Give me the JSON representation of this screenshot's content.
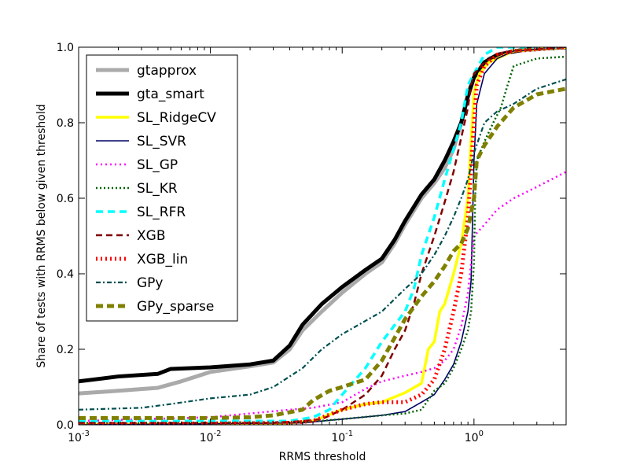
{
  "chart_data": {
    "type": "line",
    "title": "",
    "xlabel": "RRMS threshold",
    "ylabel": "Share of tests with RRMS below given threshold",
    "xscale": "log",
    "xlim": [
      0.001,
      5.0
    ],
    "ylim": [
      0.0,
      1.0
    ],
    "x_ticks": [
      {
        "value": 0.001,
        "base": "10",
        "exp": "-3"
      },
      {
        "value": 0.01,
        "base": "10",
        "exp": "-2"
      },
      {
        "value": 0.1,
        "base": "10",
        "exp": "-1"
      },
      {
        "value": 1.0,
        "base": "10",
        "exp": "0"
      }
    ],
    "y_ticks": [
      {
        "value": 0.0,
        "label": "0.0"
      },
      {
        "value": 0.2,
        "label": "0.2"
      },
      {
        "value": 0.4,
        "label": "0.4"
      },
      {
        "value": 0.6,
        "label": "0.6"
      },
      {
        "value": 0.8,
        "label": "0.8"
      },
      {
        "value": 1.0,
        "label": "1.0"
      }
    ],
    "grid": false,
    "legend_position": "upper-left",
    "series": [
      {
        "name": "gtapprox",
        "color": "#aaaaaa",
        "width": 5,
        "dash": "",
        "points": [
          [
            0.001,
            0.083
          ],
          [
            0.002,
            0.09
          ],
          [
            0.004,
            0.098
          ],
          [
            0.006,
            0.115
          ],
          [
            0.01,
            0.14
          ],
          [
            0.02,
            0.155
          ],
          [
            0.03,
            0.165
          ],
          [
            0.04,
            0.2
          ],
          [
            0.05,
            0.25
          ],
          [
            0.07,
            0.3
          ],
          [
            0.1,
            0.35
          ],
          [
            0.15,
            0.4
          ],
          [
            0.2,
            0.43
          ],
          [
            0.25,
            0.48
          ],
          [
            0.3,
            0.53
          ],
          [
            0.4,
            0.6
          ],
          [
            0.5,
            0.64
          ],
          [
            0.6,
            0.68
          ],
          [
            0.7,
            0.73
          ],
          [
            0.8,
            0.8
          ],
          [
            0.9,
            0.88
          ],
          [
            1.0,
            0.92
          ],
          [
            1.3,
            0.97
          ],
          [
            2.0,
            0.99
          ],
          [
            5.0,
            1.0
          ]
        ]
      },
      {
        "name": "gta_smart",
        "color": "#000000",
        "width": 5,
        "dash": "",
        "points": [
          [
            0.001,
            0.115
          ],
          [
            0.002,
            0.128
          ],
          [
            0.004,
            0.135
          ],
          [
            0.005,
            0.148
          ],
          [
            0.01,
            0.152
          ],
          [
            0.02,
            0.16
          ],
          [
            0.03,
            0.17
          ],
          [
            0.04,
            0.21
          ],
          [
            0.05,
            0.265
          ],
          [
            0.07,
            0.32
          ],
          [
            0.1,
            0.365
          ],
          [
            0.15,
            0.41
          ],
          [
            0.2,
            0.44
          ],
          [
            0.25,
            0.49
          ],
          [
            0.3,
            0.54
          ],
          [
            0.4,
            0.61
          ],
          [
            0.5,
            0.65
          ],
          [
            0.6,
            0.7
          ],
          [
            0.7,
            0.75
          ],
          [
            0.8,
            0.8
          ],
          [
            0.9,
            0.87
          ],
          [
            1.0,
            0.92
          ],
          [
            1.2,
            0.96
          ],
          [
            1.5,
            0.98
          ],
          [
            2.5,
            0.995
          ],
          [
            5.0,
            1.0
          ]
        ]
      },
      {
        "name": "SL_RidgeCV",
        "color": "#ffff00",
        "width": 3.5,
        "dash": "",
        "points": [
          [
            0.001,
            0.0
          ],
          [
            0.04,
            0.005
          ],
          [
            0.06,
            0.01
          ],
          [
            0.1,
            0.04
          ],
          [
            0.15,
            0.055
          ],
          [
            0.2,
            0.06
          ],
          [
            0.3,
            0.085
          ],
          [
            0.4,
            0.11
          ],
          [
            0.45,
            0.2
          ],
          [
            0.5,
            0.22
          ],
          [
            0.55,
            0.3
          ],
          [
            0.6,
            0.32
          ],
          [
            0.7,
            0.4
          ],
          [
            0.8,
            0.48
          ],
          [
            0.9,
            0.6
          ],
          [
            0.95,
            0.75
          ],
          [
            1.0,
            0.88
          ],
          [
            1.1,
            0.93
          ],
          [
            1.3,
            0.96
          ],
          [
            2.0,
            0.99
          ],
          [
            5.0,
            1.0
          ]
        ]
      },
      {
        "name": "SL_SVR",
        "color": "#000066",
        "width": 1.6,
        "dash": "",
        "points": [
          [
            0.001,
            0.0
          ],
          [
            0.05,
            0.005
          ],
          [
            0.1,
            0.015
          ],
          [
            0.2,
            0.025
          ],
          [
            0.3,
            0.035
          ],
          [
            0.4,
            0.06
          ],
          [
            0.5,
            0.08
          ],
          [
            0.6,
            0.12
          ],
          [
            0.7,
            0.16
          ],
          [
            0.8,
            0.22
          ],
          [
            0.9,
            0.3
          ],
          [
            0.95,
            0.38
          ],
          [
            1.0,
            0.7
          ],
          [
            1.05,
            0.85
          ],
          [
            1.2,
            0.93
          ],
          [
            1.5,
            0.97
          ],
          [
            2.0,
            0.99
          ],
          [
            5.0,
            1.0
          ]
        ]
      },
      {
        "name": "SL_GP",
        "color": "#ff00ff",
        "width": 2.5,
        "dash": "2 4",
        "points": [
          [
            0.001,
            0.01
          ],
          [
            0.01,
            0.02
          ],
          [
            0.02,
            0.03
          ],
          [
            0.04,
            0.04
          ],
          [
            0.06,
            0.045
          ],
          [
            0.1,
            0.06
          ],
          [
            0.15,
            0.095
          ],
          [
            0.2,
            0.115
          ],
          [
            0.3,
            0.13
          ],
          [
            0.4,
            0.14
          ],
          [
            0.5,
            0.15
          ],
          [
            0.6,
            0.17
          ],
          [
            0.7,
            0.2
          ],
          [
            0.8,
            0.26
          ],
          [
            0.9,
            0.35
          ],
          [
            1.0,
            0.5
          ],
          [
            1.2,
            0.53
          ],
          [
            1.5,
            0.57
          ],
          [
            2.0,
            0.6
          ],
          [
            3.0,
            0.63
          ],
          [
            5.0,
            0.67
          ]
        ]
      },
      {
        "name": "SL_KR",
        "color": "#006400",
        "width": 2.5,
        "dash": "2 3",
        "points": [
          [
            0.001,
            0.005
          ],
          [
            0.05,
            0.007
          ],
          [
            0.1,
            0.015
          ],
          [
            0.2,
            0.025
          ],
          [
            0.3,
            0.03
          ],
          [
            0.4,
            0.04
          ],
          [
            0.5,
            0.09
          ],
          [
            0.6,
            0.11
          ],
          [
            0.7,
            0.15
          ],
          [
            0.8,
            0.2
          ],
          [
            0.9,
            0.25
          ],
          [
            0.95,
            0.3
          ],
          [
            1.0,
            0.43
          ],
          [
            1.02,
            0.6
          ],
          [
            1.05,
            0.7
          ],
          [
            1.2,
            0.75
          ],
          [
            1.4,
            0.8
          ],
          [
            1.6,
            0.84
          ],
          [
            1.8,
            0.9
          ],
          [
            2.0,
            0.95
          ],
          [
            3.0,
            0.97
          ],
          [
            5.0,
            0.975
          ]
        ]
      },
      {
        "name": "SL_RFR",
        "color": "#00ffff",
        "width": 3.5,
        "dash": "9 6",
        "points": [
          [
            0.001,
            0.01
          ],
          [
            0.02,
            0.01
          ],
          [
            0.04,
            0.01
          ],
          [
            0.06,
            0.02
          ],
          [
            0.08,
            0.04
          ],
          [
            0.1,
            0.08
          ],
          [
            0.15,
            0.15
          ],
          [
            0.2,
            0.22
          ],
          [
            0.3,
            0.3
          ],
          [
            0.35,
            0.36
          ],
          [
            0.4,
            0.45
          ],
          [
            0.5,
            0.55
          ],
          [
            0.6,
            0.65
          ],
          [
            0.7,
            0.73
          ],
          [
            0.8,
            0.8
          ],
          [
            0.9,
            0.9
          ],
          [
            1.0,
            0.93
          ],
          [
            1.2,
            0.98
          ],
          [
            1.5,
            1.0
          ],
          [
            5.0,
            1.0
          ]
        ]
      },
      {
        "name": "XGB",
        "color": "#800000",
        "width": 2.5,
        "dash": "8 5",
        "points": [
          [
            0.001,
            0.005
          ],
          [
            0.03,
            0.005
          ],
          [
            0.05,
            0.01
          ],
          [
            0.07,
            0.015
          ],
          [
            0.1,
            0.04
          ],
          [
            0.15,
            0.08
          ],
          [
            0.2,
            0.13
          ],
          [
            0.25,
            0.2
          ],
          [
            0.3,
            0.25
          ],
          [
            0.35,
            0.32
          ],
          [
            0.4,
            0.4
          ],
          [
            0.5,
            0.5
          ],
          [
            0.6,
            0.59
          ],
          [
            0.7,
            0.67
          ],
          [
            0.8,
            0.76
          ],
          [
            0.9,
            0.84
          ],
          [
            0.95,
            0.9
          ],
          [
            1.0,
            0.93
          ],
          [
            1.2,
            0.96
          ],
          [
            1.5,
            0.98
          ],
          [
            2.0,
            0.99
          ],
          [
            5.0,
            1.0
          ]
        ]
      },
      {
        "name": "XGB_lin",
        "color": "#ff0000",
        "width": 5,
        "dash": "2 4",
        "points": [
          [
            0.001,
            0.0
          ],
          [
            0.04,
            0.005
          ],
          [
            0.06,
            0.01
          ],
          [
            0.1,
            0.04
          ],
          [
            0.15,
            0.055
          ],
          [
            0.2,
            0.06
          ],
          [
            0.3,
            0.06
          ],
          [
            0.4,
            0.08
          ],
          [
            0.5,
            0.12
          ],
          [
            0.6,
            0.2
          ],
          [
            0.7,
            0.3
          ],
          [
            0.8,
            0.4
          ],
          [
            0.9,
            0.55
          ],
          [
            1.0,
            0.8
          ],
          [
            1.05,
            0.9
          ],
          [
            1.2,
            0.95
          ],
          [
            1.5,
            0.98
          ],
          [
            2.0,
            0.99
          ],
          [
            5.0,
            1.0
          ]
        ]
      },
      {
        "name": "GPy",
        "color": "#005050",
        "width": 2.2,
        "dash": "6 3 2 3",
        "points": [
          [
            0.001,
            0.04
          ],
          [
            0.003,
            0.045
          ],
          [
            0.005,
            0.055
          ],
          [
            0.01,
            0.07
          ],
          [
            0.02,
            0.08
          ],
          [
            0.03,
            0.1
          ],
          [
            0.05,
            0.15
          ],
          [
            0.07,
            0.2
          ],
          [
            0.1,
            0.24
          ],
          [
            0.2,
            0.3
          ],
          [
            0.3,
            0.36
          ],
          [
            0.4,
            0.4
          ],
          [
            0.5,
            0.45
          ],
          [
            0.6,
            0.5
          ],
          [
            0.7,
            0.55
          ],
          [
            0.8,
            0.6
          ],
          [
            0.9,
            0.65
          ],
          [
            1.0,
            0.72
          ],
          [
            1.2,
            0.8
          ],
          [
            1.5,
            0.83
          ],
          [
            2.0,
            0.85
          ],
          [
            3.0,
            0.89
          ],
          [
            5.0,
            0.915
          ]
        ]
      },
      {
        "name": "GPy_sparse",
        "color": "#808000",
        "width": 5,
        "dash": "9 5",
        "points": [
          [
            0.001,
            0.018
          ],
          [
            0.01,
            0.018
          ],
          [
            0.02,
            0.02
          ],
          [
            0.03,
            0.025
          ],
          [
            0.05,
            0.04
          ],
          [
            0.06,
            0.065
          ],
          [
            0.08,
            0.09
          ],
          [
            0.1,
            0.1
          ],
          [
            0.15,
            0.12
          ],
          [
            0.2,
            0.17
          ],
          [
            0.3,
            0.28
          ],
          [
            0.4,
            0.34
          ],
          [
            0.5,
            0.38
          ],
          [
            0.6,
            0.42
          ],
          [
            0.7,
            0.46
          ],
          [
            0.8,
            0.48
          ],
          [
            0.9,
            0.52
          ],
          [
            1.0,
            0.6
          ],
          [
            1.05,
            0.7
          ],
          [
            1.2,
            0.74
          ],
          [
            1.5,
            0.79
          ],
          [
            2.0,
            0.84
          ],
          [
            3.0,
            0.875
          ],
          [
            5.0,
            0.89
          ]
        ]
      }
    ]
  }
}
